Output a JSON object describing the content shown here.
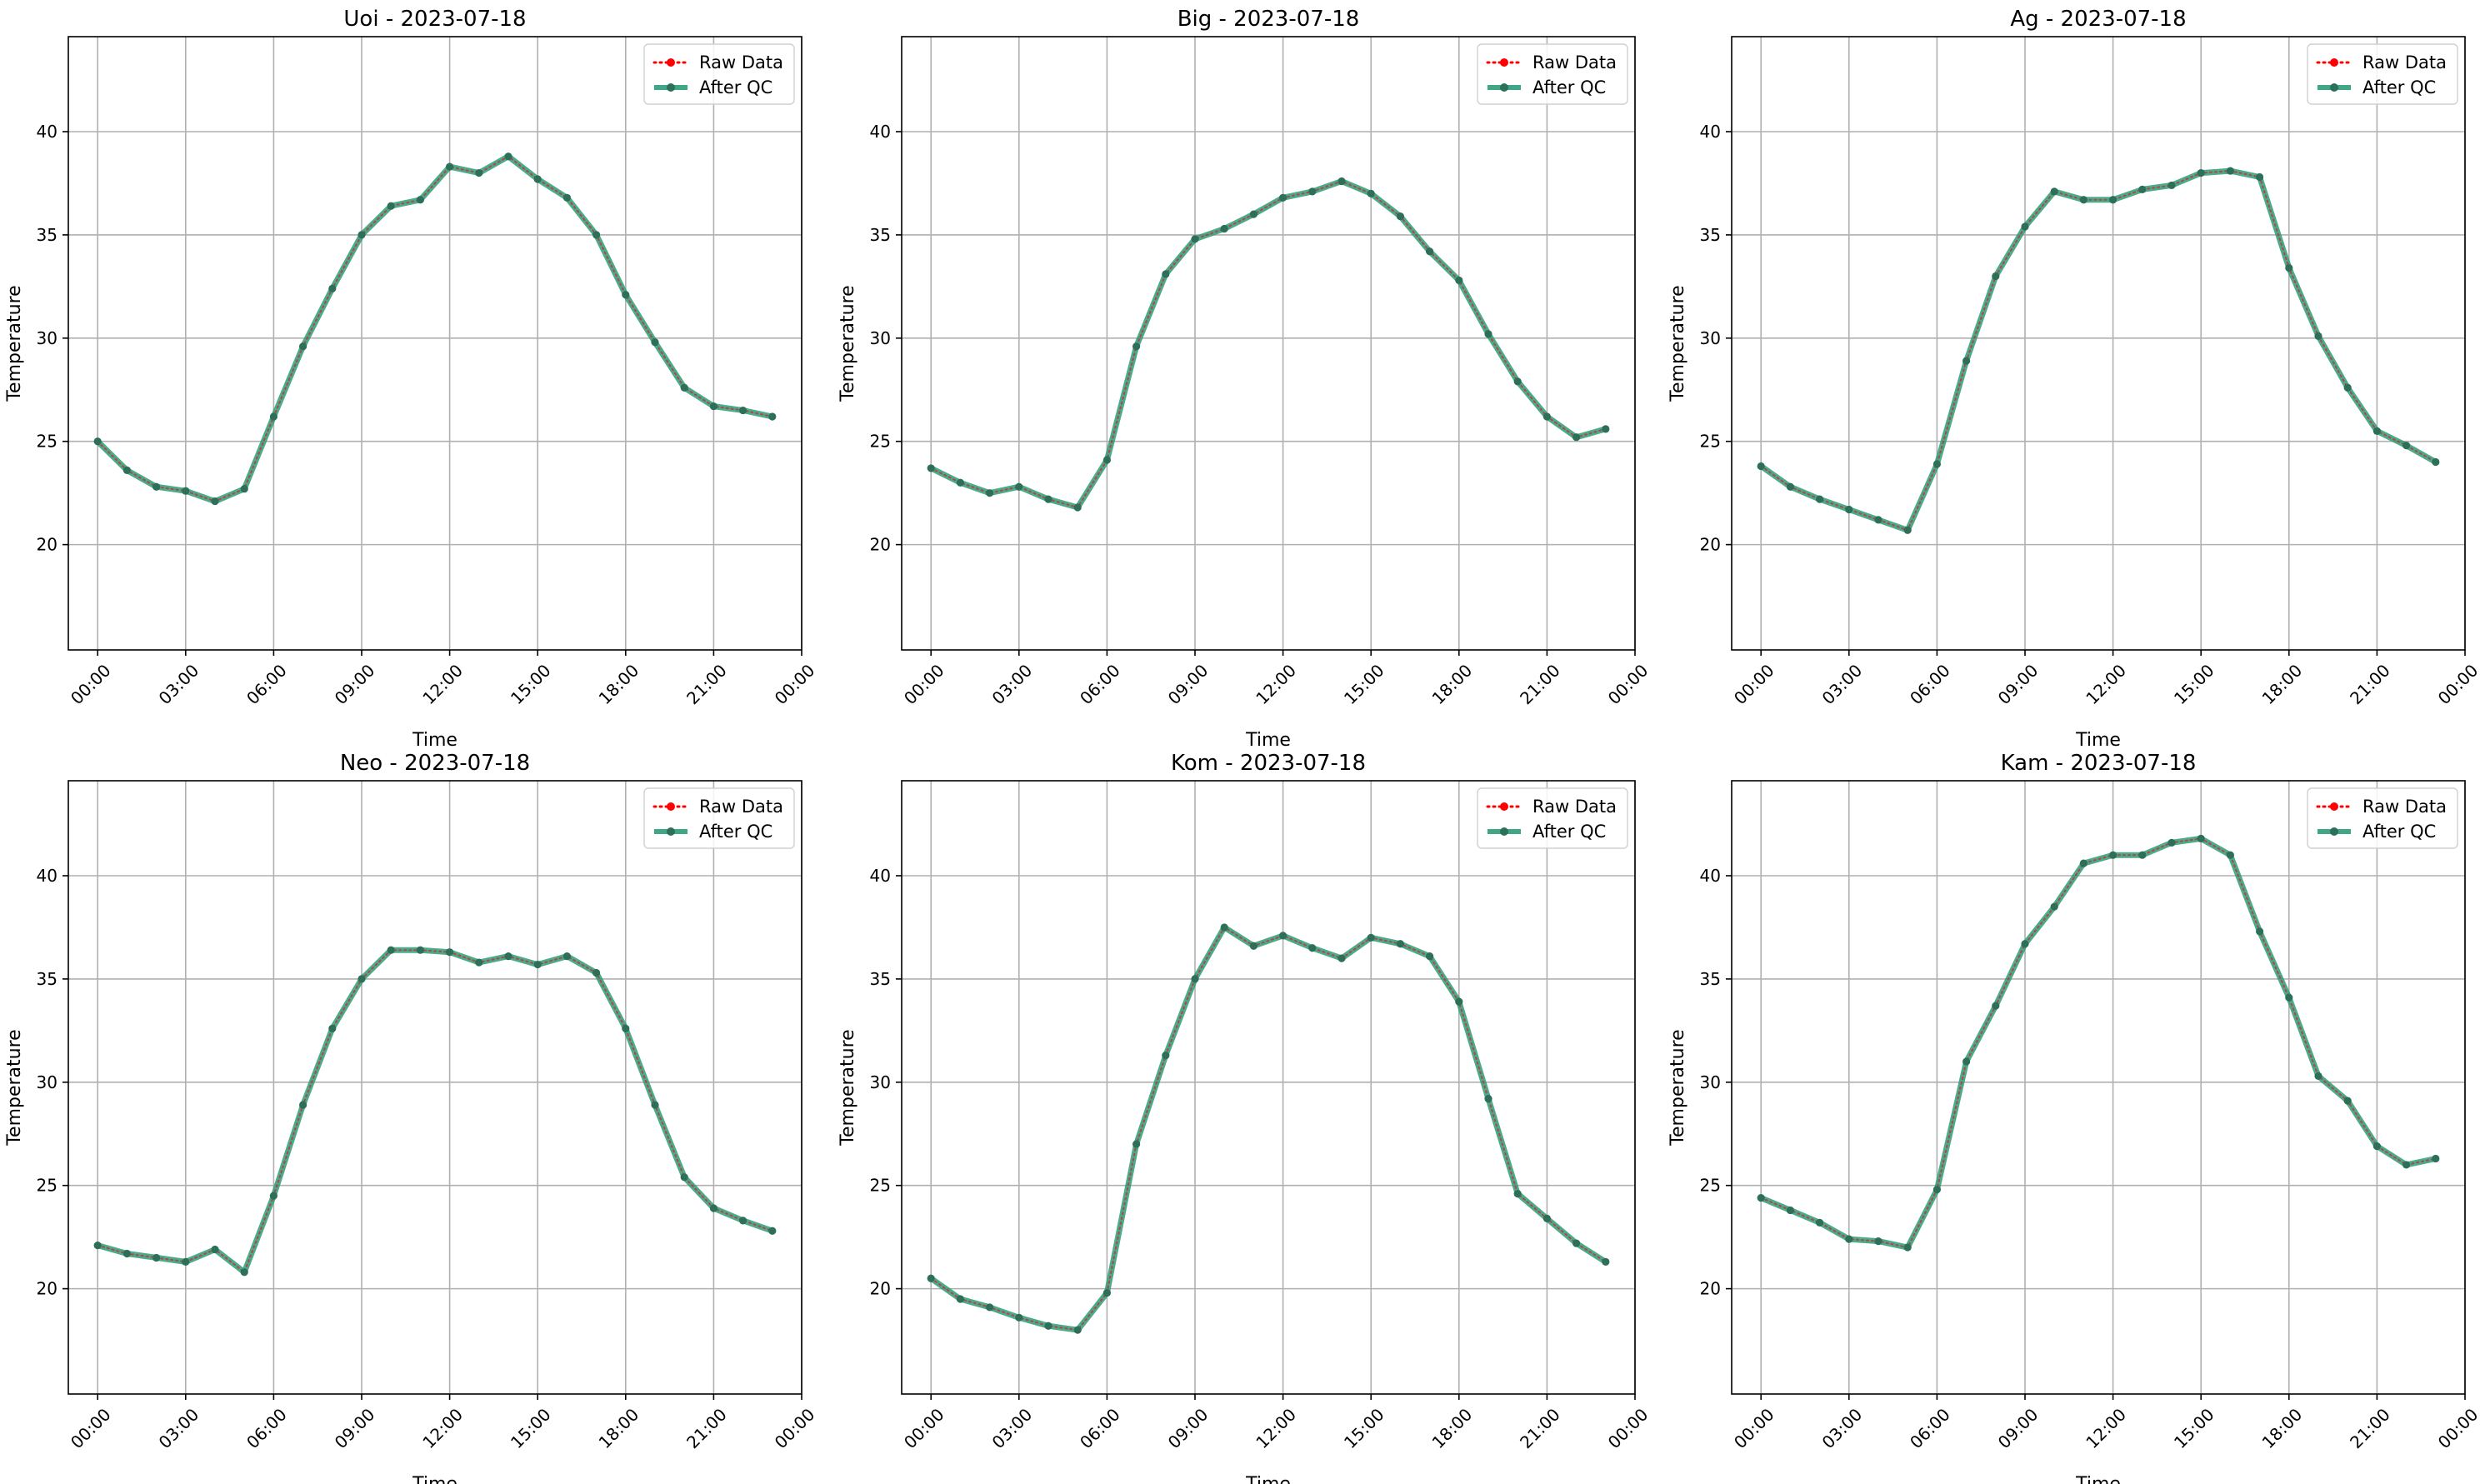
{
  "chart_data": [
    {
      "type": "line",
      "title": "Uoi - 2023-07-18",
      "xlabel": "Time",
      "ylabel": "Temperature",
      "xlim": [
        -1,
        24
      ],
      "ylim": [
        14.9,
        44.6
      ],
      "x_ticks": [
        0,
        3,
        6,
        9,
        12,
        15,
        18,
        21,
        24
      ],
      "x_tick_labels": [
        "00:00",
        "03:00",
        "06:00",
        "09:00",
        "12:00",
        "15:00",
        "18:00",
        "21:00",
        "00:00"
      ],
      "y_ticks": [
        20,
        25,
        30,
        35,
        40
      ],
      "grid": true,
      "legend_position": "top-right",
      "x": [
        0,
        1,
        2,
        3,
        4,
        5,
        6,
        7,
        8,
        9,
        10,
        11,
        12,
        13,
        14,
        15,
        16,
        17,
        18,
        19,
        20,
        21,
        22,
        23
      ],
      "series": [
        {
          "name": "Raw Data",
          "color": "#ff0000",
          "style": "dotted",
          "values": [
            25.0,
            23.6,
            22.8,
            22.6,
            22.1,
            22.7,
            26.2,
            29.6,
            32.4,
            35.0,
            36.4,
            36.7,
            38.3,
            38.0,
            38.8,
            37.7,
            36.8,
            35.0,
            32.1,
            29.8,
            27.6,
            26.7,
            26.5,
            26.2
          ]
        },
        {
          "name": "After QC",
          "color": "#2a9d7a",
          "style": "solid",
          "values": [
            25.0,
            23.6,
            22.8,
            22.6,
            22.1,
            22.7,
            26.2,
            29.6,
            32.4,
            35.0,
            36.4,
            36.7,
            38.3,
            38.0,
            38.8,
            37.7,
            36.8,
            35.0,
            32.1,
            29.8,
            27.6,
            26.7,
            26.5,
            26.2
          ]
        }
      ]
    },
    {
      "type": "line",
      "title": "Big - 2023-07-18",
      "xlabel": "Time",
      "ylabel": "Temperature",
      "xlim": [
        -1,
        24
      ],
      "ylim": [
        14.9,
        44.6
      ],
      "x_ticks": [
        0,
        3,
        6,
        9,
        12,
        15,
        18,
        21,
        24
      ],
      "x_tick_labels": [
        "00:00",
        "03:00",
        "06:00",
        "09:00",
        "12:00",
        "15:00",
        "18:00",
        "21:00",
        "00:00"
      ],
      "y_ticks": [
        20,
        25,
        30,
        35,
        40
      ],
      "grid": true,
      "legend_position": "top-right",
      "x": [
        0,
        1,
        2,
        3,
        4,
        5,
        6,
        7,
        8,
        9,
        10,
        11,
        12,
        13,
        14,
        15,
        16,
        17,
        18,
        19,
        20,
        21,
        22,
        23
      ],
      "series": [
        {
          "name": "Raw Data",
          "color": "#ff0000",
          "style": "dotted",
          "values": [
            23.7,
            23.0,
            22.5,
            22.8,
            22.2,
            21.8,
            24.1,
            29.6,
            33.1,
            34.8,
            35.3,
            36.0,
            36.8,
            37.1,
            37.6,
            37.0,
            35.9,
            34.2,
            32.8,
            30.2,
            27.9,
            26.2,
            25.2,
            25.6
          ]
        },
        {
          "name": "After QC",
          "color": "#2a9d7a",
          "style": "solid",
          "values": [
            23.7,
            23.0,
            22.5,
            22.8,
            22.2,
            21.8,
            24.1,
            29.6,
            33.1,
            34.8,
            35.3,
            36.0,
            36.8,
            37.1,
            37.6,
            37.0,
            35.9,
            34.2,
            32.8,
            30.2,
            27.9,
            26.2,
            25.2,
            25.6
          ]
        }
      ]
    },
    {
      "type": "line",
      "title": "Ag - 2023-07-18",
      "xlabel": "Time",
      "ylabel": "Temperature",
      "xlim": [
        -1,
        24
      ],
      "ylim": [
        14.9,
        44.6
      ],
      "x_ticks": [
        0,
        3,
        6,
        9,
        12,
        15,
        18,
        21,
        24
      ],
      "x_tick_labels": [
        "00:00",
        "03:00",
        "06:00",
        "09:00",
        "12:00",
        "15:00",
        "18:00",
        "21:00",
        "00:00"
      ],
      "y_ticks": [
        20,
        25,
        30,
        35,
        40
      ],
      "grid": true,
      "legend_position": "top-right",
      "x": [
        0,
        1,
        2,
        3,
        4,
        5,
        6,
        7,
        8,
        9,
        10,
        11,
        12,
        13,
        14,
        15,
        16,
        17,
        18,
        19,
        20,
        21,
        22,
        23
      ],
      "series": [
        {
          "name": "Raw Data",
          "color": "#ff0000",
          "style": "dotted",
          "values": [
            23.8,
            22.8,
            22.2,
            21.7,
            21.2,
            20.7,
            23.9,
            28.9,
            33.0,
            35.4,
            37.1,
            36.7,
            36.7,
            37.2,
            37.4,
            38.0,
            38.1,
            37.8,
            33.4,
            30.1,
            27.6,
            25.5,
            24.8,
            24.0
          ]
        },
        {
          "name": "After QC",
          "color": "#2a9d7a",
          "style": "solid",
          "values": [
            23.8,
            22.8,
            22.2,
            21.7,
            21.2,
            20.7,
            23.9,
            28.9,
            33.0,
            35.4,
            37.1,
            36.7,
            36.7,
            37.2,
            37.4,
            38.0,
            38.1,
            37.8,
            33.4,
            30.1,
            27.6,
            25.5,
            24.8,
            24.0
          ]
        }
      ]
    },
    {
      "type": "line",
      "title": "Neo - 2023-07-18",
      "xlabel": "Time",
      "ylabel": "Temperature",
      "xlim": [
        -1,
        24
      ],
      "ylim": [
        14.9,
        44.6
      ],
      "x_ticks": [
        0,
        3,
        6,
        9,
        12,
        15,
        18,
        21,
        24
      ],
      "x_tick_labels": [
        "00:00",
        "03:00",
        "06:00",
        "09:00",
        "12:00",
        "15:00",
        "18:00",
        "21:00",
        "00:00"
      ],
      "y_ticks": [
        20,
        25,
        30,
        35,
        40
      ],
      "grid": true,
      "legend_position": "top-right",
      "x": [
        0,
        1,
        2,
        3,
        4,
        5,
        6,
        7,
        8,
        9,
        10,
        11,
        12,
        13,
        14,
        15,
        16,
        17,
        18,
        19,
        20,
        21,
        22,
        23
      ],
      "series": [
        {
          "name": "Raw Data",
          "color": "#ff0000",
          "style": "dotted",
          "values": [
            22.1,
            21.7,
            21.5,
            21.3,
            21.9,
            20.8,
            24.5,
            28.9,
            32.6,
            35.0,
            36.4,
            36.4,
            36.3,
            35.8,
            36.1,
            35.7,
            36.1,
            35.3,
            32.6,
            28.9,
            25.4,
            23.9,
            23.3,
            22.8
          ]
        },
        {
          "name": "After QC",
          "color": "#2a9d7a",
          "style": "solid",
          "values": [
            22.1,
            21.7,
            21.5,
            21.3,
            21.9,
            20.8,
            24.5,
            28.9,
            32.6,
            35.0,
            36.4,
            36.4,
            36.3,
            35.8,
            36.1,
            35.7,
            36.1,
            35.3,
            32.6,
            28.9,
            25.4,
            23.9,
            23.3,
            22.8
          ]
        }
      ]
    },
    {
      "type": "line",
      "title": "Kom - 2023-07-18",
      "xlabel": "Time",
      "ylabel": "Temperature",
      "xlim": [
        -1,
        24
      ],
      "ylim": [
        14.9,
        44.6
      ],
      "x_ticks": [
        0,
        3,
        6,
        9,
        12,
        15,
        18,
        21,
        24
      ],
      "x_tick_labels": [
        "00:00",
        "03:00",
        "06:00",
        "09:00",
        "12:00",
        "15:00",
        "18:00",
        "21:00",
        "00:00"
      ],
      "y_ticks": [
        20,
        25,
        30,
        35,
        40
      ],
      "grid": true,
      "legend_position": "top-right",
      "x": [
        0,
        1,
        2,
        3,
        4,
        5,
        6,
        7,
        8,
        9,
        10,
        11,
        12,
        13,
        14,
        15,
        16,
        17,
        18,
        19,
        20,
        21,
        22,
        23
      ],
      "series": [
        {
          "name": "Raw Data",
          "color": "#ff0000",
          "style": "dotted",
          "values": [
            20.5,
            19.5,
            19.1,
            18.6,
            18.2,
            18.0,
            19.8,
            27.0,
            31.3,
            35.0,
            37.5,
            36.6,
            37.1,
            36.5,
            36.0,
            37.0,
            36.7,
            36.1,
            33.9,
            29.2,
            24.6,
            23.4,
            22.2,
            21.3
          ]
        },
        {
          "name": "After QC",
          "color": "#2a9d7a",
          "style": "solid",
          "values": [
            20.5,
            19.5,
            19.1,
            18.6,
            18.2,
            18.0,
            19.8,
            27.0,
            31.3,
            35.0,
            37.5,
            36.6,
            37.1,
            36.5,
            36.0,
            37.0,
            36.7,
            36.1,
            33.9,
            29.2,
            24.6,
            23.4,
            22.2,
            21.3
          ]
        }
      ]
    },
    {
      "type": "line",
      "title": "Kam - 2023-07-18",
      "xlabel": "Time",
      "ylabel": "Temperature",
      "xlim": [
        -1,
        24
      ],
      "ylim": [
        14.9,
        44.6
      ],
      "x_ticks": [
        0,
        3,
        6,
        9,
        12,
        15,
        18,
        21,
        24
      ],
      "x_tick_labels": [
        "00:00",
        "03:00",
        "06:00",
        "09:00",
        "12:00",
        "15:00",
        "18:00",
        "21:00",
        "00:00"
      ],
      "y_ticks": [
        20,
        25,
        30,
        35,
        40
      ],
      "grid": true,
      "legend_position": "top-right",
      "x": [
        0,
        1,
        2,
        3,
        4,
        5,
        6,
        7,
        8,
        9,
        10,
        11,
        12,
        13,
        14,
        15,
        16,
        17,
        18,
        19,
        20,
        21,
        22,
        23
      ],
      "series": [
        {
          "name": "Raw Data",
          "color": "#ff0000",
          "style": "dotted",
          "values": [
            24.4,
            23.8,
            23.2,
            22.4,
            22.3,
            22.0,
            24.8,
            31.0,
            33.7,
            36.7,
            38.5,
            40.6,
            41.0,
            41.0,
            41.6,
            41.8,
            41.0,
            37.3,
            34.1,
            30.3,
            29.1,
            26.9,
            26.0,
            26.3
          ]
        },
        {
          "name": "After QC",
          "color": "#2a9d7a",
          "style": "solid",
          "values": [
            24.4,
            23.8,
            23.2,
            22.4,
            22.3,
            22.0,
            24.8,
            31.0,
            33.7,
            36.7,
            38.5,
            40.6,
            41.0,
            41.0,
            41.6,
            41.8,
            41.0,
            37.3,
            34.1,
            30.3,
            29.1,
            26.9,
            26.0,
            26.3
          ]
        }
      ]
    }
  ]
}
